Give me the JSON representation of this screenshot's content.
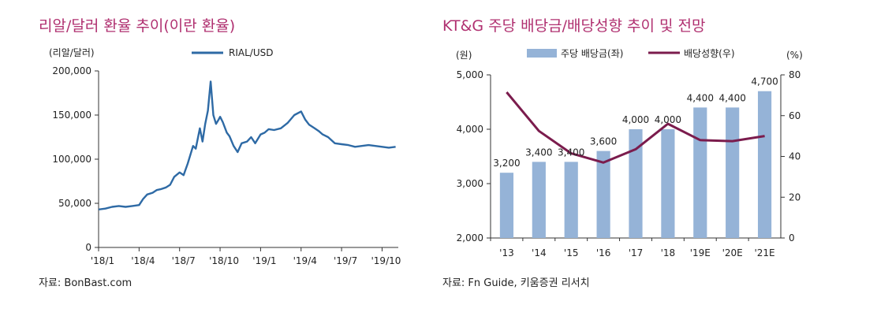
{
  "chart_data": [
    {
      "type": "line",
      "title": "리알/달러 환율 추이(이란 환율)",
      "ylabel": "(리알/달러)",
      "legend": "RIAL/USD",
      "ylim": [
        0,
        200000
      ],
      "yticks": [
        "0",
        "50,000",
        "100,000",
        "150,000",
        "200,000"
      ],
      "xtick_labels": [
        "'18/1",
        "'18/4",
        "'18/7",
        "'18/10",
        "'19/1",
        "'19/4",
        "'19/7",
        "'19/10"
      ],
      "xlim": [
        0,
        22.2
      ],
      "x": [
        0,
        0.5,
        1,
        1.5,
        2,
        2.5,
        3,
        3.3,
        3.6,
        4,
        4.3,
        4.6,
        5,
        5.3,
        5.6,
        6,
        6.3,
        6.6,
        7,
        7.2,
        7.5,
        7.7,
        7.9,
        8.1,
        8.3,
        8.5,
        8.7,
        8.9,
        9,
        9.2,
        9.5,
        9.7,
        10,
        10.3,
        10.6,
        11,
        11.3,
        11.6,
        12,
        12.3,
        12.6,
        13,
        13.5,
        14,
        14.5,
        15,
        15.3,
        15.6,
        16,
        16.3,
        16.6,
        17,
        17.5,
        18,
        18.5,
        19,
        19.5,
        20,
        20.5,
        21,
        21.5,
        22
      ],
      "values": [
        43000,
        44000,
        46000,
        47000,
        46000,
        47000,
        48000,
        55000,
        60000,
        62000,
        65000,
        66000,
        68000,
        71000,
        80000,
        85000,
        82000,
        95000,
        115000,
        112000,
        135000,
        120000,
        140000,
        155000,
        188000,
        150000,
        140000,
        145000,
        148000,
        142000,
        130000,
        126000,
        115000,
        108000,
        118000,
        120000,
        125000,
        118000,
        128000,
        130000,
        134000,
        133000,
        135000,
        141000,
        150000,
        154000,
        145000,
        139000,
        135000,
        132000,
        128000,
        125000,
        118000,
        117000,
        116000,
        114000,
        115000,
        116000,
        115000,
        114000,
        113000,
        114000
      ],
      "source": "자료: BonBast.com"
    },
    {
      "type": "bar+line",
      "title": "KT&G 주당 배당금/배당성향 추이 및 전망",
      "left_axis_label": "(원)",
      "right_axis_label": "(%)",
      "categories": [
        "'13",
        "'14",
        "'15",
        "'16",
        "'17",
        "'18",
        "'19E",
        "'20E",
        "'21E"
      ],
      "series": [
        {
          "name": "주당 배당금(좌)",
          "axis": "left",
          "values": [
            3200,
            3400,
            3400,
            3600,
            4000,
            4000,
            4400,
            4400,
            4700
          ],
          "labels": [
            "3,200",
            "3,400",
            "3,400",
            "3,600",
            "4,000",
            "4,000",
            "4,400",
            "4,400",
            "4,700"
          ]
        },
        {
          "name": "배당성향(우)",
          "axis": "right",
          "values": [
            71.5,
            52.5,
            41.5,
            37,
            43.5,
            56,
            48,
            47.5,
            50
          ]
        }
      ],
      "left_ylim": [
        2000,
        5000
      ],
      "left_yticks": [
        "2,000",
        "3,000",
        "4,000",
        "5,000"
      ],
      "right_ylim": [
        0,
        80
      ],
      "right_yticks": [
        "0",
        "20",
        "40",
        "60",
        "80"
      ],
      "source": "자료: Fn Guide, 키움증권 리서치"
    }
  ],
  "colors": {
    "title": "#b03070",
    "line1": "#2e6aa5",
    "bar": "#95b3d7",
    "line2": "#7b1c4d"
  }
}
